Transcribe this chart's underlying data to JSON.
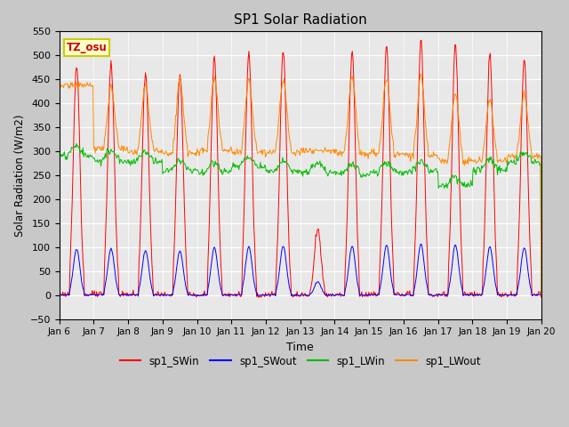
{
  "title": "SP1 Solar Radiation",
  "xlabel": "Time",
  "ylabel": "Solar Radiation (W/m2)",
  "ylim": [
    -50,
    550
  ],
  "yticks": [
    -50,
    0,
    50,
    100,
    150,
    200,
    250,
    300,
    350,
    400,
    450,
    500,
    550
  ],
  "line_colors": {
    "SWin": "#ff0000",
    "SWout": "#0000ff",
    "LWin": "#00bb00",
    "LWout": "#ff8800"
  },
  "tz_label": "TZ_osu",
  "figsize": [
    6.4,
    4.8
  ],
  "dpi": 100,
  "SWin_peaks": [
    480,
    485,
    465,
    460,
    495,
    505,
    510,
    140,
    510,
    520,
    530,
    525,
    505,
    495
  ],
  "LWout_night": [
    438,
    305,
    300,
    295,
    302,
    300,
    298,
    300,
    296,
    295,
    290,
    280,
    280,
    290
  ],
  "LWout_day_add": [
    0,
    130,
    140,
    155,
    150,
    145,
    150,
    0,
    160,
    160,
    165,
    140,
    130,
    130
  ],
  "LWin_base": [
    290,
    280,
    278,
    260,
    256,
    268,
    258,
    255,
    252,
    256,
    258,
    228,
    262,
    278
  ]
}
